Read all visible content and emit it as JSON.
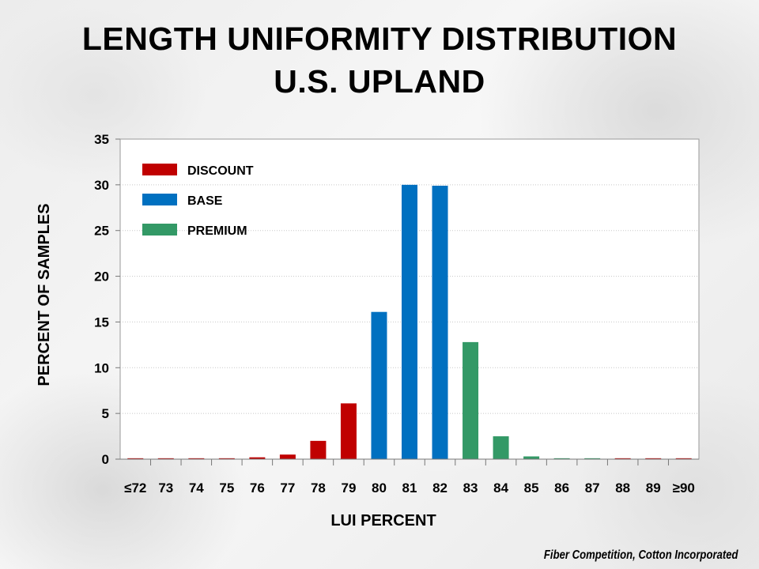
{
  "title_line1": "LENGTH UNIFORMITY DISTRIBUTION",
  "title_line2": "U.S. UPLAND",
  "credit": "Fiber Competition, Cotton Incorporated",
  "colors": {
    "discount": "#c00000",
    "base": "#0070c0",
    "premium": "#339966"
  },
  "chart_data": {
    "type": "bar",
    "xlabel": "LUI PERCENT",
    "ylabel": "PERCENT OF SAMPLES",
    "ylim": [
      0,
      35
    ],
    "yticks": [
      0,
      5,
      10,
      15,
      20,
      25,
      30,
      35
    ],
    "grid": true,
    "legend_position": "top-left",
    "legend": [
      {
        "name": "DISCOUNT",
        "group": "discount"
      },
      {
        "name": "BASE",
        "group": "base"
      },
      {
        "name": "PREMIUM",
        "group": "premium"
      }
    ],
    "categories": [
      "≤72",
      "73",
      "74",
      "75",
      "76",
      "77",
      "78",
      "79",
      "80",
      "81",
      "82",
      "83",
      "84",
      "85",
      "86",
      "87",
      "88",
      "89",
      "≥90"
    ],
    "values": [
      0.1,
      0.1,
      0.1,
      0.1,
      0.2,
      0.5,
      2.0,
      6.1,
      16.1,
      30.0,
      29.9,
      12.8,
      2.5,
      0.3,
      0.1,
      0.1,
      0.1,
      0.1,
      0.1
    ],
    "groups": [
      "discount",
      "discount",
      "discount",
      "discount",
      "discount",
      "discount",
      "discount",
      "discount",
      "base",
      "base",
      "base",
      "premium",
      "premium",
      "premium",
      "premium",
      "premium",
      "discount",
      "discount",
      "discount"
    ]
  }
}
